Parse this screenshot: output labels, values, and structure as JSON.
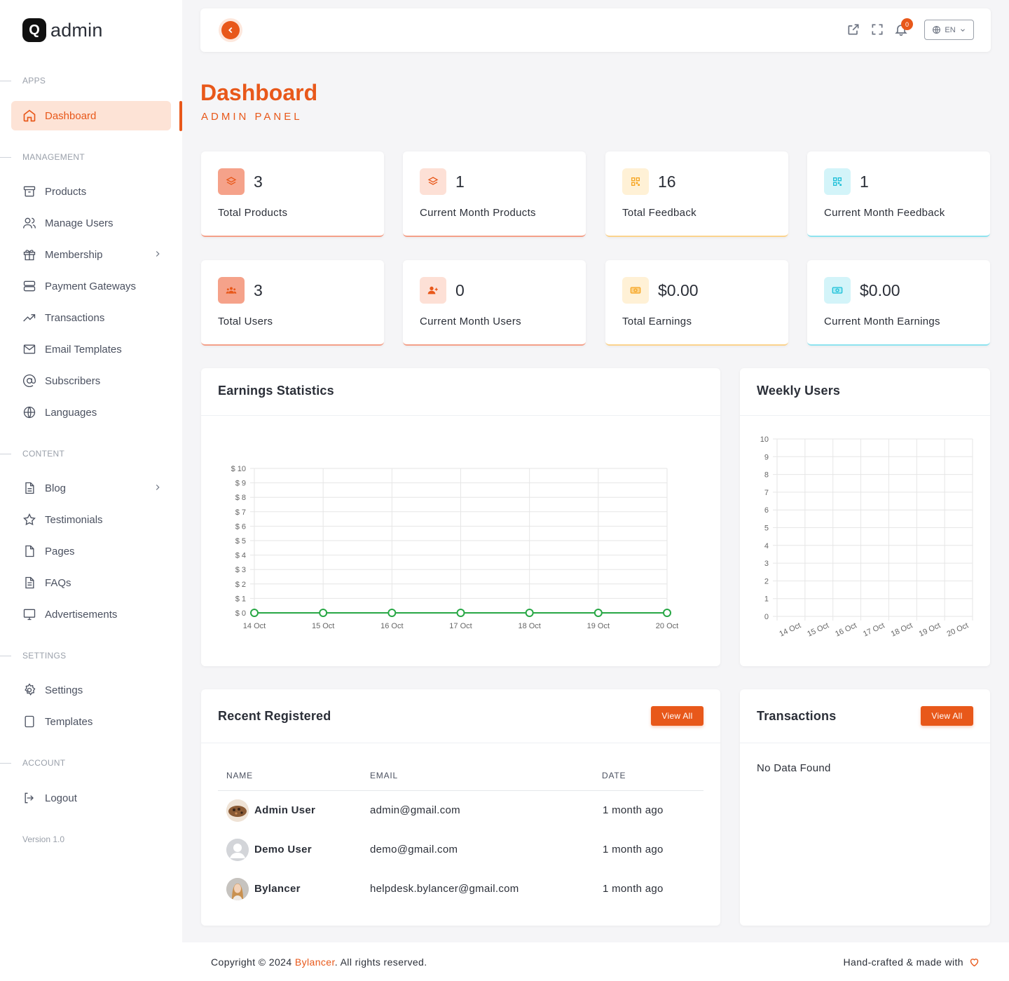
{
  "app": {
    "logo_letter": "Q",
    "logo_text": "admin",
    "version": "Version 1.0"
  },
  "sidebar": {
    "sections": {
      "apps": "APPS",
      "management": "MANAGEMENT",
      "content": "CONTENT",
      "settings": "SETTINGS",
      "account": "ACCOUNT"
    },
    "items": {
      "dashboard": "Dashboard",
      "products": "Products",
      "manage_users": "Manage Users",
      "membership": "Membership",
      "payment_gateways": "Payment Gateways",
      "transactions": "Transactions",
      "email_templates": "Email Templates",
      "subscribers": "Subscribers",
      "languages": "Languages",
      "blog": "Blog",
      "testimonials": "Testimonials",
      "pages": "Pages",
      "faqs": "FAQs",
      "advertisements": "Advertisements",
      "settings": "Settings",
      "templates": "Templates",
      "logout": "Logout"
    }
  },
  "topbar": {
    "notification_count": "0",
    "language": "EN"
  },
  "header": {
    "title": "Dashboard",
    "subtitle": "ADMIN PANEL"
  },
  "stats": [
    {
      "value": "3",
      "label": "Total Products",
      "color": "#f4a089"
    },
    {
      "value": "1",
      "label": "Current Month Products",
      "color": "#f4a089"
    },
    {
      "value": "16",
      "label": "Total Feedback",
      "color": "#fbd38d"
    },
    {
      "value": "1",
      "label": "Current Month Feedback",
      "color": "#8ee3ef"
    },
    {
      "value": "3",
      "label": "Total Users",
      "color": "#f4a089"
    },
    {
      "value": "0",
      "label": "Current Month Users",
      "color": "#f4a089"
    },
    {
      "value": "$0.00",
      "label": "Total Earnings",
      "color": "#fbd38d"
    },
    {
      "value": "$0.00",
      "label": "Current Month Earnings",
      "color": "#8ee3ef"
    }
  ],
  "panels": {
    "earnings_title": "Earnings Statistics",
    "weekly_title": "Weekly Users",
    "recent_title": "Recent Registered",
    "transactions_title": "Transactions",
    "view_all": "View All",
    "no_data": "No Data Found"
  },
  "chart_data": [
    {
      "type": "line",
      "title": "Earnings Statistics",
      "categories": [
        "14 Oct",
        "15 Oct",
        "16 Oct",
        "17 Oct",
        "18 Oct",
        "19 Oct",
        "20 Oct"
      ],
      "series": [
        {
          "values": [
            0,
            0,
            0,
            0,
            0,
            0,
            0
          ],
          "color": "#28a745"
        }
      ],
      "ylim": [
        0,
        10
      ],
      "yticks": [
        "$ 0",
        "$ 1",
        "$ 2",
        "$ 3",
        "$ 4",
        "$ 5",
        "$ 6",
        "$ 7",
        "$ 8",
        "$ 9",
        "$ 10"
      ],
      "grid": true
    },
    {
      "type": "bar",
      "title": "Weekly Users",
      "categories": [
        "14 Oct",
        "15 Oct",
        "16 Oct",
        "17 Oct",
        "18 Oct",
        "19 Oct",
        "20 Oct"
      ],
      "series": [
        {
          "values": [
            0,
            0,
            0,
            0,
            0,
            0,
            0
          ]
        }
      ],
      "ylim": [
        0,
        10
      ],
      "yticks": [
        "0",
        "1",
        "2",
        "3",
        "4",
        "5",
        "6",
        "7",
        "8",
        "9",
        "10"
      ],
      "grid": true
    }
  ],
  "recent": {
    "headers": {
      "name": "NAME",
      "email": "EMAIL",
      "date": "DATE"
    },
    "rows": [
      {
        "name": "Admin User",
        "email": "admin@gmail.com",
        "date": "1 month ago"
      },
      {
        "name": "Demo User",
        "email": "demo@gmail.com",
        "date": "1 month ago"
      },
      {
        "name": "Bylancer",
        "email": "helpdesk.bylancer@gmail.com",
        "date": "1 month ago"
      }
    ]
  },
  "footer": {
    "copyright_prefix": "Copyright © 2024 ",
    "brand": "Bylancer",
    "copyright_suffix": ". All rights reserved.",
    "right": "Hand-crafted & made with"
  }
}
